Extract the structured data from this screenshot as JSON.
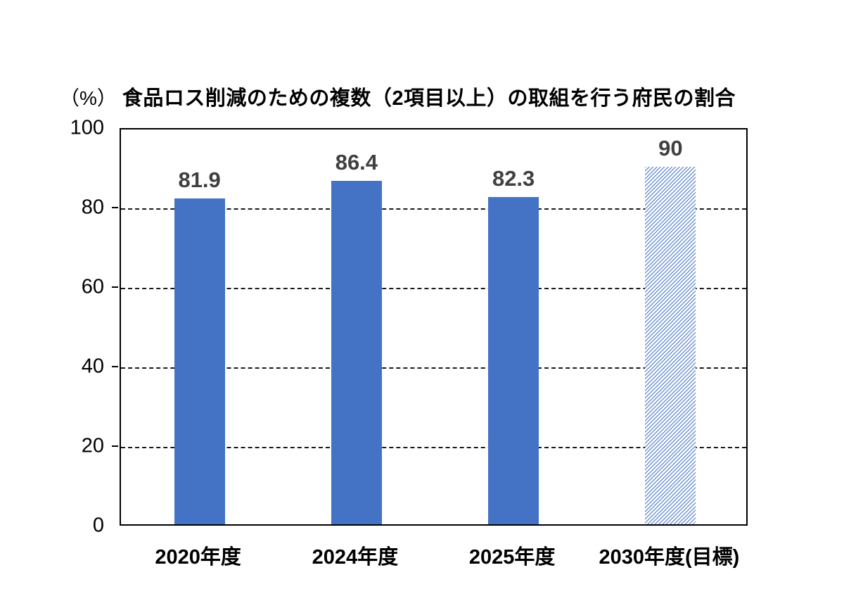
{
  "title": {
    "unit": "（%）",
    "text": "食品ロス削減のための複数（2項目以上）の取組を行う府民の割合"
  },
  "chart_data": {
    "type": "bar",
    "title": "食品ロス削減のための複数（2項目以上）の取組を行う府民の割合",
    "unit_label": "（%）",
    "categories": [
      "2020年度",
      "2024年度",
      "2025年度",
      "2030年度(目標)"
    ],
    "values": [
      81.9,
      86.4,
      82.3,
      90
    ],
    "value_labels": [
      "81.9",
      "86.4",
      "82.3",
      "90"
    ],
    "bar_styles": [
      "solid",
      "solid",
      "solid",
      "hatched"
    ],
    "ylim": [
      0,
      100
    ],
    "yticks": [
      0,
      20,
      40,
      60,
      80,
      100
    ],
    "grid": "horizontal dashed lines at 20, 40, 60, 80",
    "legend": "none",
    "colors": {
      "bar_fill": "#4472C4",
      "hatch_stripe": "#6F93D6",
      "hatch_background": "#ffffff",
      "value_label_text": "#404040",
      "axis_text": "#000000",
      "plot_border": "#000000",
      "gridline": "#1a1a1a",
      "background": "#ffffff"
    }
  }
}
